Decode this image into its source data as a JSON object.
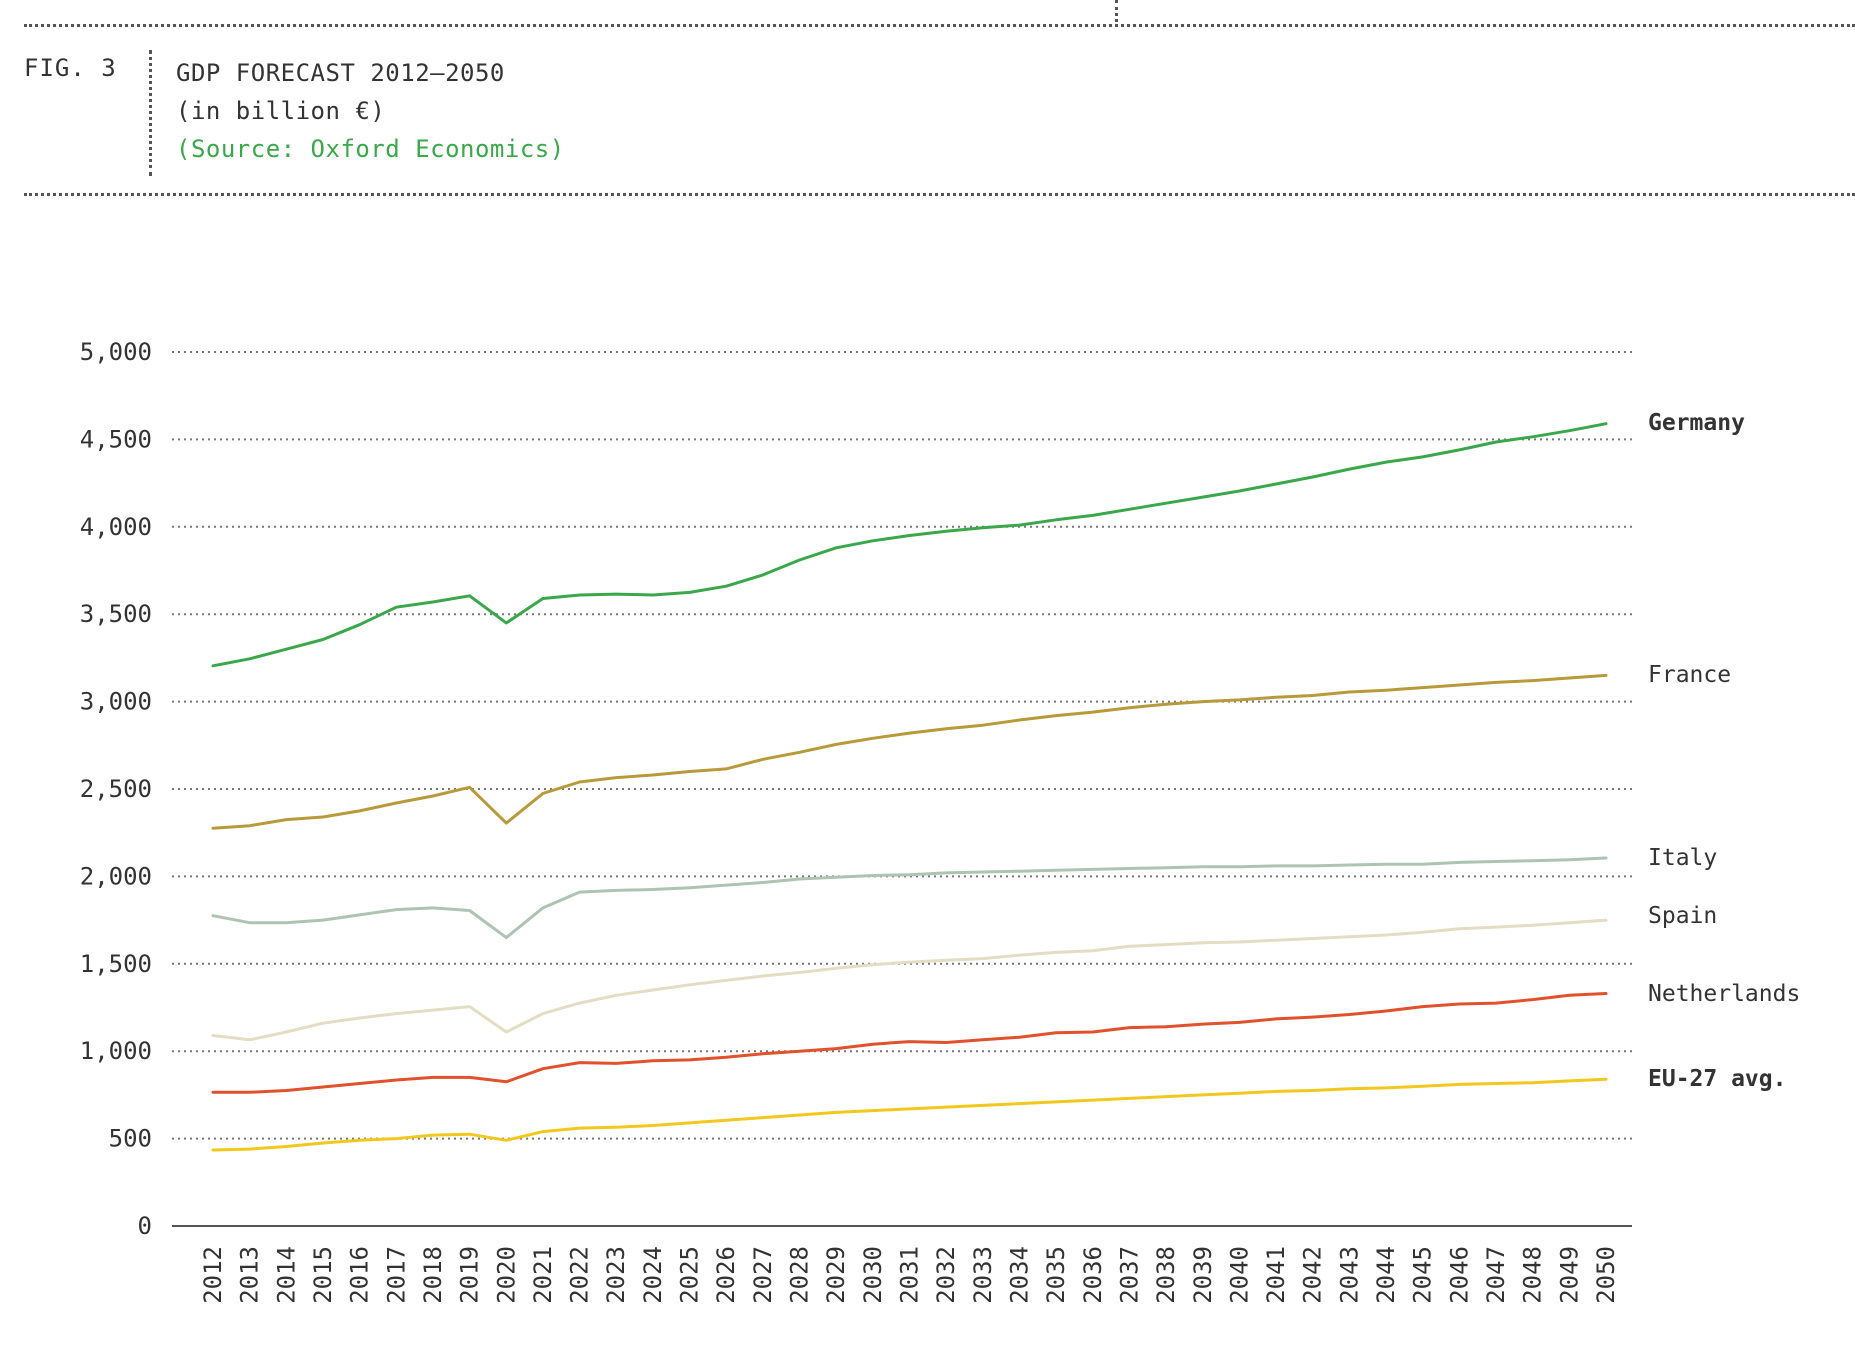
{
  "header": {
    "fig_label": "FIG. 3",
    "title": "GDP FORECAST 2012–2050",
    "subtitle": "(in billion €)",
    "source": "(Source: Oxford Economics)"
  },
  "colors": {
    "source_text": "#3aa84a"
  },
  "chart_data": {
    "type": "line",
    "ylim": [
      0,
      5000
    ],
    "yticks": [
      0,
      500,
      1000,
      1500,
      2000,
      2500,
      3000,
      3500,
      4000,
      4500,
      5000
    ],
    "ytick_labels": [
      "0",
      "500",
      "1,000",
      "1,500",
      "2,000",
      "2,500",
      "3,000",
      "3,500",
      "4,000",
      "4,500",
      "5,000"
    ],
    "grid": "horizontal-dotted",
    "legend": "right-end-labels",
    "x": [
      2012,
      2013,
      2014,
      2015,
      2016,
      2017,
      2018,
      2019,
      2020,
      2021,
      2022,
      2023,
      2024,
      2025,
      2026,
      2027,
      2028,
      2029,
      2030,
      2031,
      2032,
      2033,
      2034,
      2035,
      2036,
      2037,
      2038,
      2039,
      2040,
      2041,
      2042,
      2043,
      2044,
      2045,
      2046,
      2047,
      2048,
      2049,
      2050
    ],
    "series": [
      {
        "name": "Germany",
        "color": "#3aa84a",
        "bold": true,
        "values": [
          3205,
          3245,
          3300,
          3355,
          3440,
          3540,
          3570,
          3605,
          3450,
          3590,
          3610,
          3615,
          3610,
          3625,
          3660,
          3725,
          3810,
          3880,
          3920,
          3950,
          3975,
          3995,
          4010,
          4040,
          4065,
          4100,
          4135,
          4170,
          4205,
          4245,
          4285,
          4330,
          4370,
          4400,
          4440,
          4485,
          4515,
          4550,
          4590
        ]
      },
      {
        "name": "France",
        "color": "#b89a3a",
        "bold": false,
        "values": [
          2275,
          2290,
          2325,
          2340,
          2375,
          2420,
          2460,
          2510,
          2305,
          2475,
          2540,
          2565,
          2580,
          2600,
          2615,
          2670,
          2710,
          2755,
          2790,
          2820,
          2845,
          2865,
          2895,
          2920,
          2940,
          2965,
          2985,
          3000,
          3010,
          3025,
          3035,
          3055,
          3065,
          3080,
          3095,
          3110,
          3120,
          3135,
          3150
        ]
      },
      {
        "name": "Italy",
        "color": "#adc4b2",
        "bold": false,
        "values": [
          1775,
          1735,
          1735,
          1750,
          1780,
          1810,
          1820,
          1805,
          1650,
          1820,
          1910,
          1920,
          1925,
          1935,
          1950,
          1965,
          1985,
          1995,
          2005,
          2010,
          2020,
          2025,
          2030,
          2035,
          2040,
          2045,
          2050,
          2055,
          2055,
          2060,
          2060,
          2065,
          2070,
          2070,
          2080,
          2085,
          2090,
          2095,
          2105
        ]
      },
      {
        "name": "Spain",
        "color": "#e3ddc3",
        "bold": false,
        "values": [
          1090,
          1065,
          1110,
          1160,
          1190,
          1215,
          1235,
          1255,
          1110,
          1215,
          1275,
          1320,
          1350,
          1380,
          1405,
          1430,
          1450,
          1475,
          1495,
          1510,
          1520,
          1530,
          1550,
          1565,
          1575,
          1600,
          1610,
          1620,
          1625,
          1635,
          1645,
          1655,
          1665,
          1680,
          1700,
          1710,
          1720,
          1735,
          1750
        ]
      },
      {
        "name": "Netherlands",
        "color": "#e0512c",
        "bold": false,
        "values": [
          765,
          765,
          775,
          795,
          815,
          835,
          850,
          850,
          825,
          900,
          935,
          930,
          945,
          950,
          965,
          985,
          1000,
          1015,
          1040,
          1055,
          1050,
          1065,
          1080,
          1105,
          1110,
          1135,
          1140,
          1155,
          1165,
          1185,
          1195,
          1210,
          1230,
          1255,
          1270,
          1275,
          1295,
          1320,
          1330
        ]
      },
      {
        "name": "EU-27 avg.",
        "color": "#f2c81e",
        "bold": true,
        "values": [
          435,
          440,
          455,
          475,
          490,
          500,
          520,
          525,
          490,
          540,
          560,
          565,
          575,
          590,
          605,
          620,
          635,
          650,
          660,
          670,
          680,
          690,
          700,
          710,
          720,
          730,
          740,
          750,
          760,
          770,
          775,
          785,
          790,
          800,
          810,
          815,
          820,
          830,
          840
        ]
      }
    ]
  }
}
